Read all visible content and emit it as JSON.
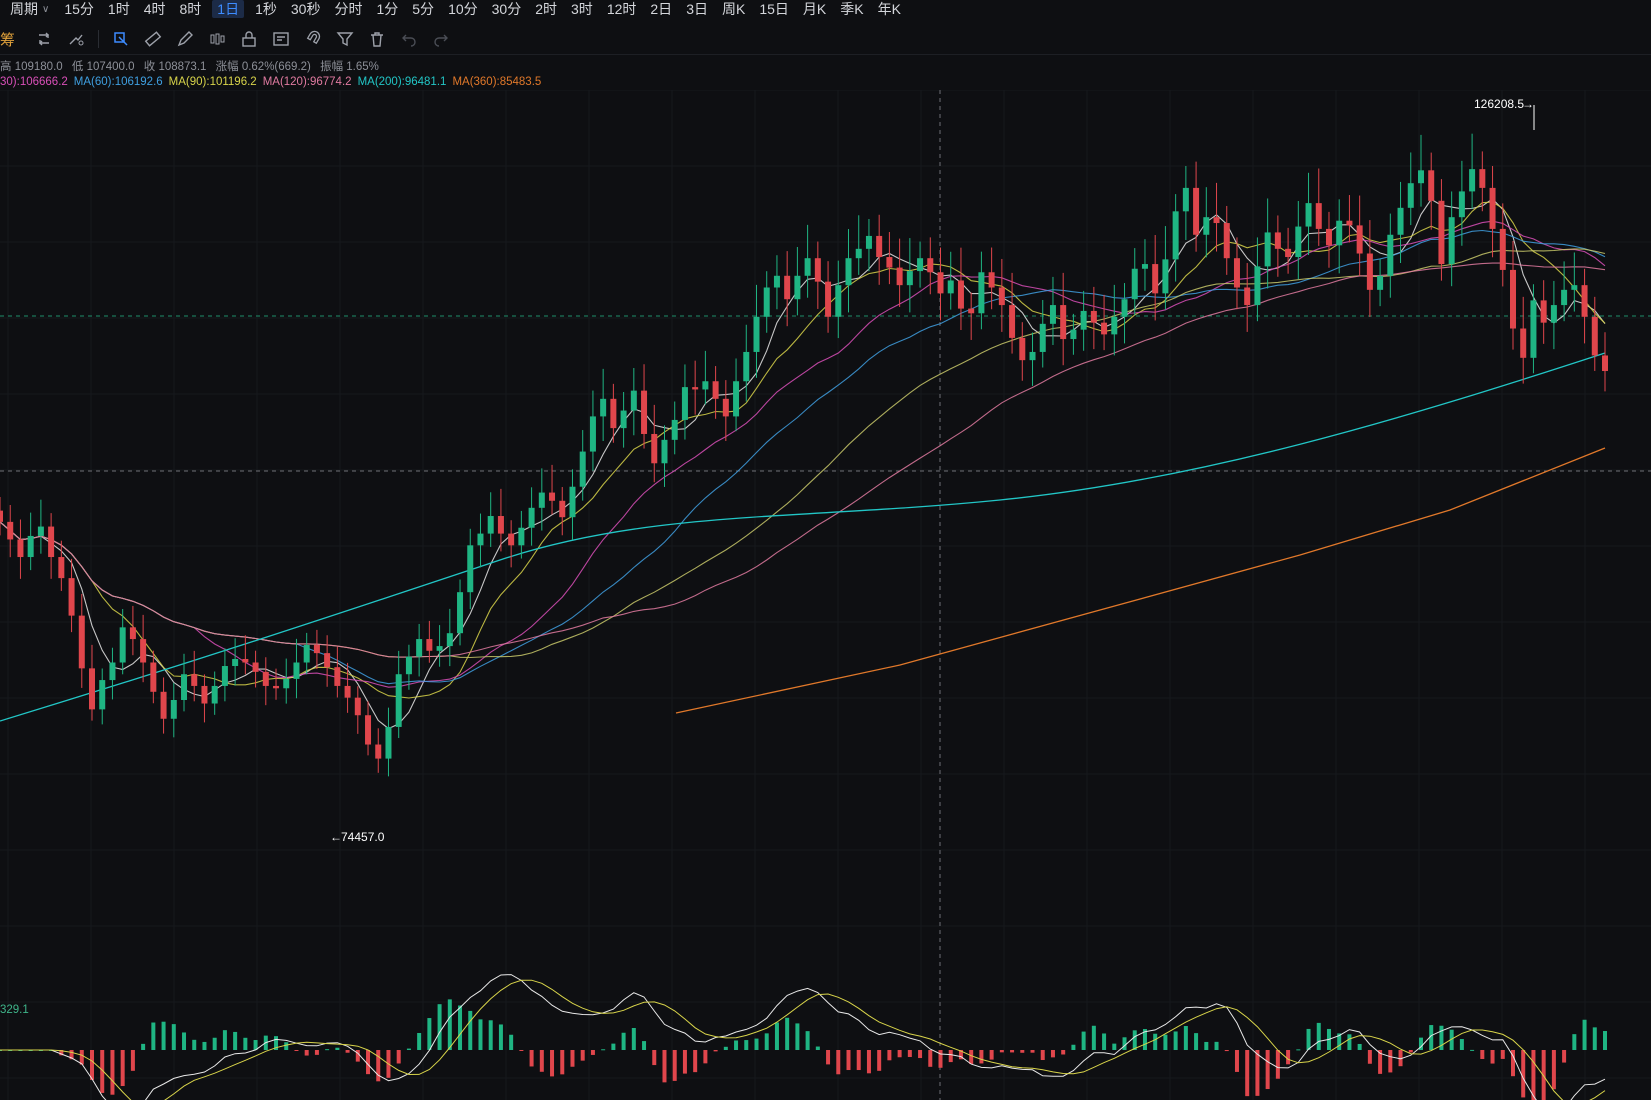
{
  "periods": {
    "lead_text": "",
    "dropdown_label": "周期",
    "items": [
      "15分",
      "1时",
      "4时",
      "8时",
      "1日",
      "1秒",
      "30秒",
      "分时",
      "1分",
      "5分",
      "10分",
      "30分",
      "2时",
      "3时",
      "12时",
      "2日",
      "3日",
      "周K",
      "15日",
      "月K",
      "季K",
      "年K"
    ],
    "active": "1日"
  },
  "toolbar": {
    "label": "筹",
    "tools": [
      "refresh-icon",
      "settings-icon",
      "box-select-icon",
      "ruler-icon",
      "pen-icon",
      "candle-icon",
      "lock-icon",
      "template-icon",
      "magnet-icon",
      "filter-icon",
      "delete-icon",
      "undo-icon",
      "redo-icon"
    ]
  },
  "ohlc": {
    "high": "高 109180.0",
    "low": "低 107400.0",
    "close": "收 108873.1",
    "change": "涨幅 0.62%(669.2)",
    "amplitude": "振幅 1.65%"
  },
  "ma": [
    {
      "label": "30):106666.2",
      "color": "#d94fb8"
    },
    {
      "label": "MA(60):106192.6",
      "color": "#3f9fe0"
    },
    {
      "label": "MA(90):101196.2",
      "color": "#d8d44a"
    },
    {
      "label": "MA(120):96774.2",
      "color": "#e07aa0"
    },
    {
      "label": "MA(200):96481.1",
      "color": "#22c6c6"
    },
    {
      "label": "MA(360):85483.5",
      "color": "#e0782a"
    }
  ],
  "markers": {
    "high_label": "126208.5",
    "low_label": "74457.0"
  },
  "macd_label": "329.1",
  "chart_data": {
    "type": "candlestick",
    "price_range": [
      68000,
      132000
    ],
    "high_marker": 126208.5,
    "low_marker": 74457.0,
    "last_close": 108873.1,
    "candles_close": [
      96000,
      94500,
      93000,
      94800,
      95600,
      93000,
      91200,
      88000,
      83500,
      80000,
      82500,
      84000,
      87000,
      86000,
      84000,
      81500,
      79200,
      80800,
      83000,
      82000,
      80500,
      82000,
      83700,
      84300,
      84000,
      83200,
      82000,
      81800,
      82600,
      84000,
      85500,
      84800,
      83600,
      82000,
      81000,
      79500,
      77000,
      75800,
      78500,
      83000,
      84500,
      86000,
      85000,
      85400,
      86500,
      90000,
      94000,
      95000,
      96500,
      95000,
      94000,
      95500,
      97200,
      98500,
      97800,
      96400,
      99000,
      102000,
      105000,
      106500,
      104000,
      105500,
      107200,
      103500,
      101000,
      103000,
      104700,
      107500,
      107300,
      108000,
      106500,
      105000,
      108000,
      110500,
      113500,
      116000,
      117000,
      115000,
      117000,
      118500,
      116500,
      113500,
      116200,
      118500,
      119300,
      120400,
      118600,
      117700,
      116200,
      117400,
      118500,
      117300,
      115500,
      116600,
      114200,
      113800,
      117300,
      116000,
      114500,
      111700,
      109800,
      110500,
      112900,
      114500,
      111600,
      112400,
      114000,
      113000,
      112000,
      113500,
      115000,
      117600,
      118000,
      115500,
      118400,
      122500,
      124500,
      120500,
      122000,
      121500,
      118500,
      116000,
      114500,
      117800,
      120700,
      119300,
      118600,
      121200,
      123200,
      121000,
      119600,
      121700,
      121300,
      118900,
      115800,
      117000,
      120500,
      122800,
      124900,
      126000,
      123400,
      118000,
      122000,
      124200,
      126100,
      124500,
      121000,
      117500,
      112500,
      110000,
      114900,
      113000,
      114500,
      115800,
      116200,
      113500,
      110200,
      108873
    ]
  }
}
